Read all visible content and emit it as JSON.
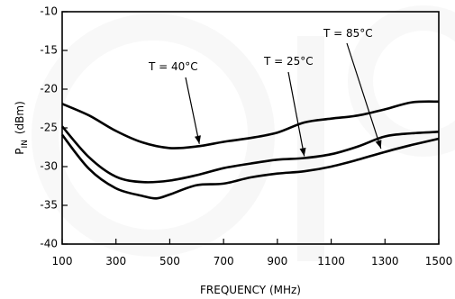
{
  "chart_data": {
    "type": "line",
    "title": "",
    "xlabel": "FREQUENCY (MHz)",
    "ylabel": "P",
    "ylabel_subscript": "IN",
    "ylabel_unit": "(dBm)",
    "xlim": [
      100,
      1500
    ],
    "ylim": [
      -40,
      -10
    ],
    "xticks": [
      100,
      300,
      500,
      700,
      900,
      1100,
      1300,
      1500
    ],
    "yticks": [
      -10,
      -15,
      -20,
      -25,
      -30,
      -35,
      -40
    ],
    "xtick_labels": [
      "100",
      "300",
      "500",
      "700",
      "900",
      "1100",
      "1300",
      "1500"
    ],
    "ytick_labels": [
      "-10",
      "-15",
      "-20",
      "-25",
      "-30",
      "-35",
      "-40"
    ],
    "grid": false,
    "series": [
      {
        "name": "T = 85°C",
        "x": [
          100,
          200,
          300,
          400,
          500,
          600,
          700,
          800,
          900,
          1000,
          1100,
          1200,
          1300,
          1400,
          1500
        ],
        "y": [
          -21.9,
          -23.4,
          -25.4,
          -26.9,
          -27.6,
          -27.4,
          -26.8,
          -26.3,
          -25.6,
          -24.3,
          -23.8,
          -23.4,
          -22.6,
          -21.7,
          -21.6
        ]
      },
      {
        "name": "T = 25°C",
        "x": [
          100,
          200,
          300,
          400,
          500,
          600,
          700,
          800,
          900,
          1000,
          1100,
          1200,
          1300,
          1400,
          1500
        ],
        "y": [
          -24.8,
          -28.8,
          -31.3,
          -32.0,
          -31.8,
          -31.1,
          -30.2,
          -29.6,
          -29.1,
          -28.9,
          -28.4,
          -27.4,
          -26.1,
          -25.7,
          -25.5
        ]
      },
      {
        "name": "T = 40°C",
        "x": [
          100,
          200,
          300,
          400,
          450,
          500,
          600,
          700,
          800,
          900,
          1000,
          1100,
          1200,
          1300,
          1400,
          1500
        ],
        "y": [
          -25.9,
          -30.3,
          -32.8,
          -33.8,
          -34.1,
          -33.6,
          -32.4,
          -32.2,
          -31.4,
          -30.9,
          -30.6,
          -30.0,
          -29.1,
          -28.1,
          -27.2,
          -26.4
        ]
      }
    ],
    "annotations": [
      {
        "text": "T = 40°C",
        "series_index": 2,
        "arrow_to_x": 610,
        "arrow_to_y": -27.3
      },
      {
        "text": "T = 25°C",
        "series_index": 1,
        "arrow_to_x": 1000,
        "arrow_to_y": -28.9
      },
      {
        "text": "T = 85°C",
        "series_index": 0,
        "arrow_to_x": 1285,
        "arrow_to_y": -27.9
      }
    ]
  }
}
